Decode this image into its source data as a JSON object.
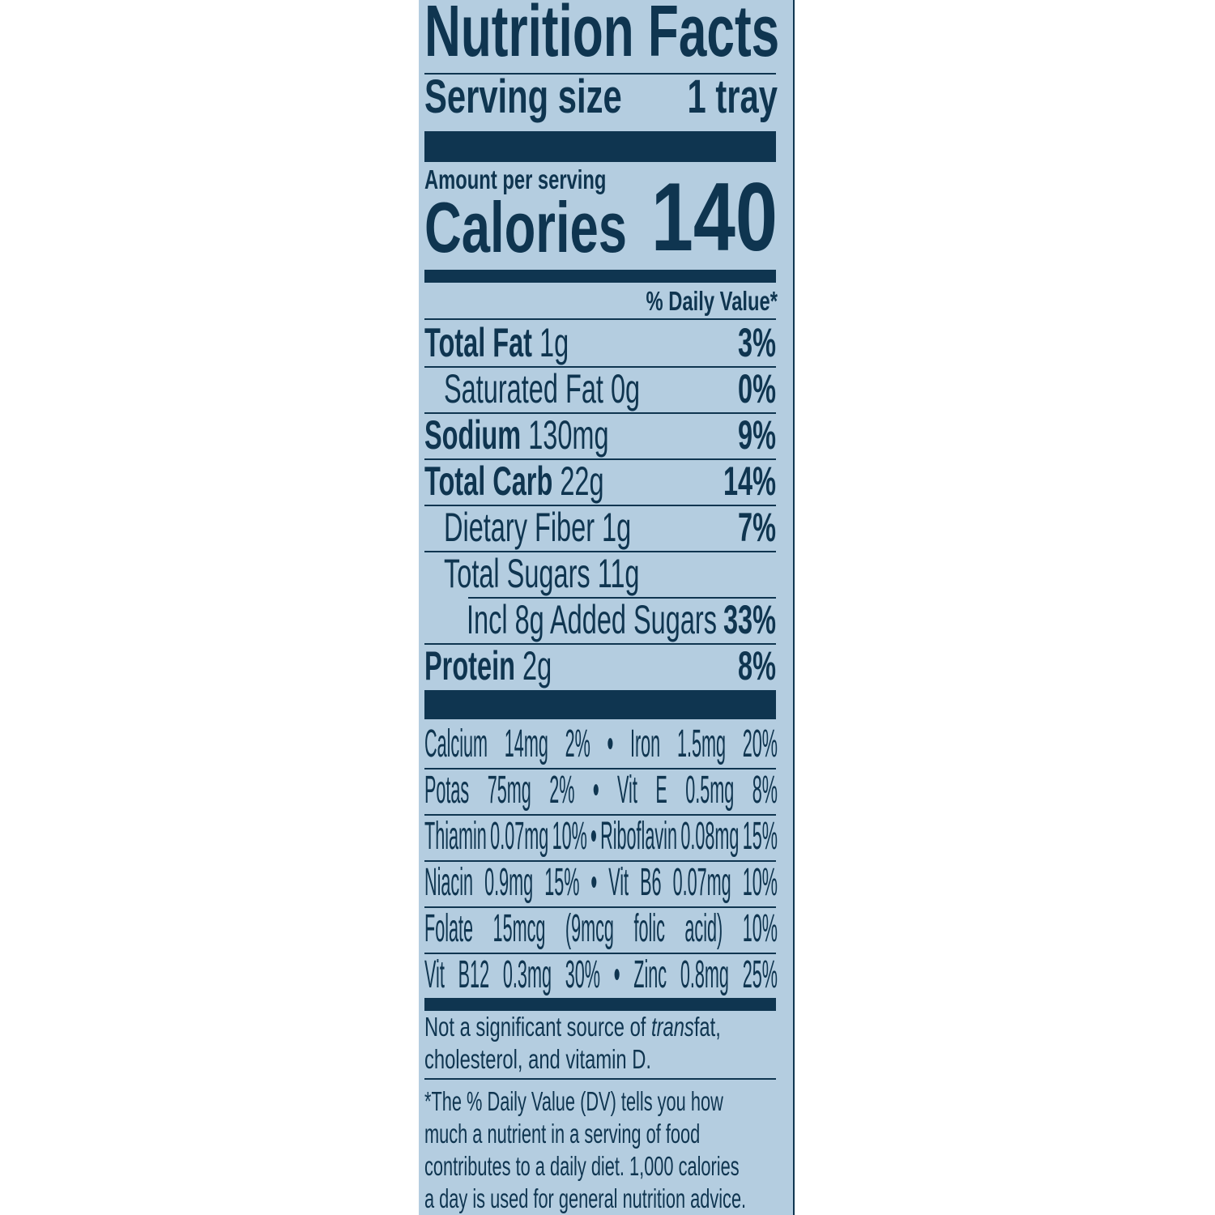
{
  "title": "Nutrition Facts",
  "serving": {
    "label": "Serving size",
    "value": "1 tray"
  },
  "amount_per_serving": "Amount per serving",
  "calories": {
    "label": "Calories",
    "value": "140"
  },
  "daily_value_header": "% Daily Value*",
  "nutrients": [
    {
      "name": "Total Fat",
      "amount": "1g",
      "dv": "3%",
      "bold": true,
      "indent": 0
    },
    {
      "name": "Saturated Fat",
      "amount": "0g",
      "dv": "0%",
      "bold": false,
      "indent": 1
    },
    {
      "name": "Sodium",
      "amount": "130mg",
      "dv": "9%",
      "bold": true,
      "indent": 0
    },
    {
      "name": "Total Carb",
      "amount": "22g",
      "dv": "14%",
      "bold": true,
      "indent": 0
    },
    {
      "name": "Dietary Fiber",
      "amount": "1g",
      "dv": "7%",
      "bold": false,
      "indent": 1
    },
    {
      "name": "Total Sugars",
      "amount": "11g",
      "dv": "",
      "bold": false,
      "indent": 1
    },
    {
      "name": "Incl 8g Added Sugars",
      "amount": "",
      "dv": "33%",
      "bold": false,
      "indent": 2
    },
    {
      "name": "Protein",
      "amount": "2g",
      "dv": "8%",
      "bold": true,
      "indent": 0
    }
  ],
  "vitamins": [
    [
      "Calcium",
      "14mg",
      "2%",
      "•",
      "Iron",
      "1.5mg",
      "20%"
    ],
    [
      "Potas",
      "75mg",
      "2%",
      "•",
      "Vit",
      "E",
      "0.5mg",
      "8%"
    ],
    [
      "Thiamin",
      "0.07mg",
      "10%",
      "•",
      "Riboflavin",
      "0.08mg",
      "15%"
    ],
    [
      "Niacin",
      "0.9mg",
      "15%",
      "•",
      "Vit",
      "B6",
      "0.07mg",
      "10%"
    ],
    [
      "Folate",
      "15mcg",
      "(9mcg",
      "folic",
      "acid)",
      "10%"
    ],
    [
      "Vit",
      "B12",
      "0.3mg",
      "30%",
      "•",
      "Zinc",
      "0.8mg",
      "25%"
    ]
  ],
  "footnote_trans": {
    "line1_pre": "Not a significant source of ",
    "line1_italic": "trans",
    "line1_post": " fat,",
    "line2": "cholesterol, and vitamin D."
  },
  "footnote_dv": [
    "*The % Daily Value (DV) tells you how",
    "much a nutrient in a serving of food",
    "contributes to a daily diet. 1,000 calories",
    "a day is used for general nutrition advice."
  ],
  "colors": {
    "background": "#b4cde0",
    "ink": "#0f3550"
  }
}
